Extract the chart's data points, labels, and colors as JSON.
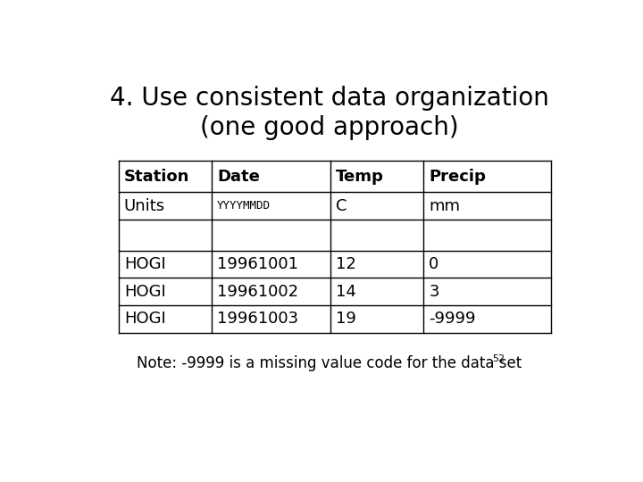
{
  "title_line1": "4. Use consistent data organization",
  "title_line2": "(one good approach)",
  "title_fontsize": 20,
  "bg_color": "#ffffff",
  "table_headers": [
    "Station",
    "Date",
    "Temp",
    "Precip"
  ],
  "table_rows": [
    [
      "Units",
      "YYYYMMDD",
      "C",
      "mm"
    ],
    [
      "",
      "",
      "",
      ""
    ],
    [
      "HOGI",
      "19961001",
      "12",
      "0"
    ],
    [
      "HOGI",
      "19961002",
      "14",
      "3"
    ],
    [
      "HOGI",
      "19961003",
      "19",
      "-9999"
    ]
  ],
  "note_text": "Note: -9999 is a missing value code for the data set",
  "note_superscript": "52",
  "note_fontsize": 12,
  "cell_fontsize": 13,
  "header_fontsize": 13,
  "yyyymmdd_fontsize": 9,
  "font_family": "DejaVu Sans"
}
